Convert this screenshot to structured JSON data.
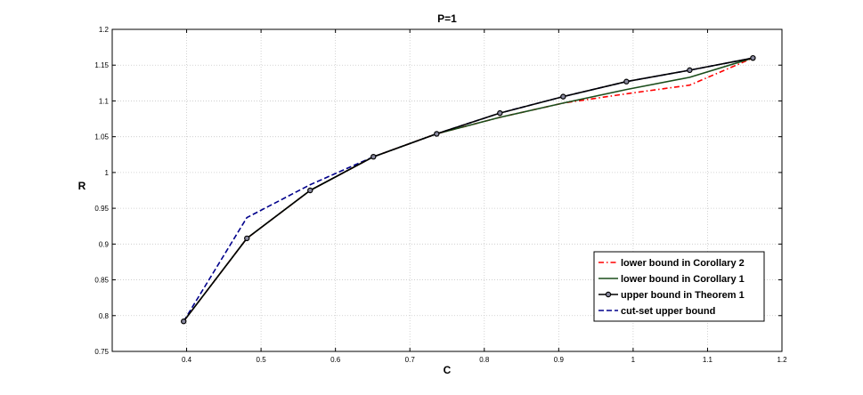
{
  "chart_data": {
    "type": "line",
    "title": "P=1",
    "xlabel": "C",
    "ylabel": "R",
    "xlim": [
      0.3,
      1.2
    ],
    "ylim": [
      0.75,
      1.2
    ],
    "xticks": [
      "0.4",
      "0.5",
      "0.6",
      "0.7",
      "0.8",
      "0.9",
      "1",
      "1.1",
      "1.2"
    ],
    "yticks": [
      "0.75",
      "0.8",
      "0.85",
      "0.9",
      "0.95",
      "1",
      "1.05",
      "1.1",
      "1.15",
      "1.2"
    ],
    "grid": true,
    "legend_position": "bottom-right",
    "series": [
      {
        "name": "lower bound in Corollary 2",
        "color": "#ff0000",
        "style": "dash-dot",
        "marker": "none",
        "x": [
          0.396,
          0.481,
          0.566,
          0.651,
          0.736,
          0.821,
          0.906,
          0.991,
          1.076,
          1.161
        ],
        "y": [
          0.792,
          0.908,
          0.975,
          1.022,
          1.054,
          1.077,
          1.097,
          1.11,
          1.122,
          1.16
        ]
      },
      {
        "name": "lower bound in Corollary 1",
        "color": "#1a4d1a",
        "style": "solid",
        "marker": "none",
        "x": [
          0.396,
          0.481,
          0.566,
          0.651,
          0.736,
          0.821,
          0.906,
          0.991,
          1.076,
          1.161
        ],
        "y": [
          0.792,
          0.908,
          0.975,
          1.022,
          1.054,
          1.077,
          1.097,
          1.116,
          1.133,
          1.16
        ]
      },
      {
        "name": "upper bound in Theorem 1",
        "color": "#000000",
        "style": "solid",
        "marker": "circle",
        "x": [
          0.396,
          0.481,
          0.566,
          0.651,
          0.736,
          0.821,
          0.906,
          0.991,
          1.076,
          1.161
        ],
        "y": [
          0.792,
          0.908,
          0.975,
          1.022,
          1.054,
          1.083,
          1.106,
          1.127,
          1.143,
          1.16
        ]
      },
      {
        "name": "cut-set upper bound",
        "color": "#00008b",
        "style": "dashed",
        "marker": "none",
        "x": [
          0.396,
          0.481,
          0.566,
          0.651,
          0.736,
          0.821,
          0.906,
          0.991,
          1.076,
          1.161
        ],
        "y": [
          0.792,
          0.937,
          0.983,
          1.022,
          1.054,
          1.083,
          1.106,
          1.127,
          1.143,
          1.16
        ]
      }
    ]
  }
}
